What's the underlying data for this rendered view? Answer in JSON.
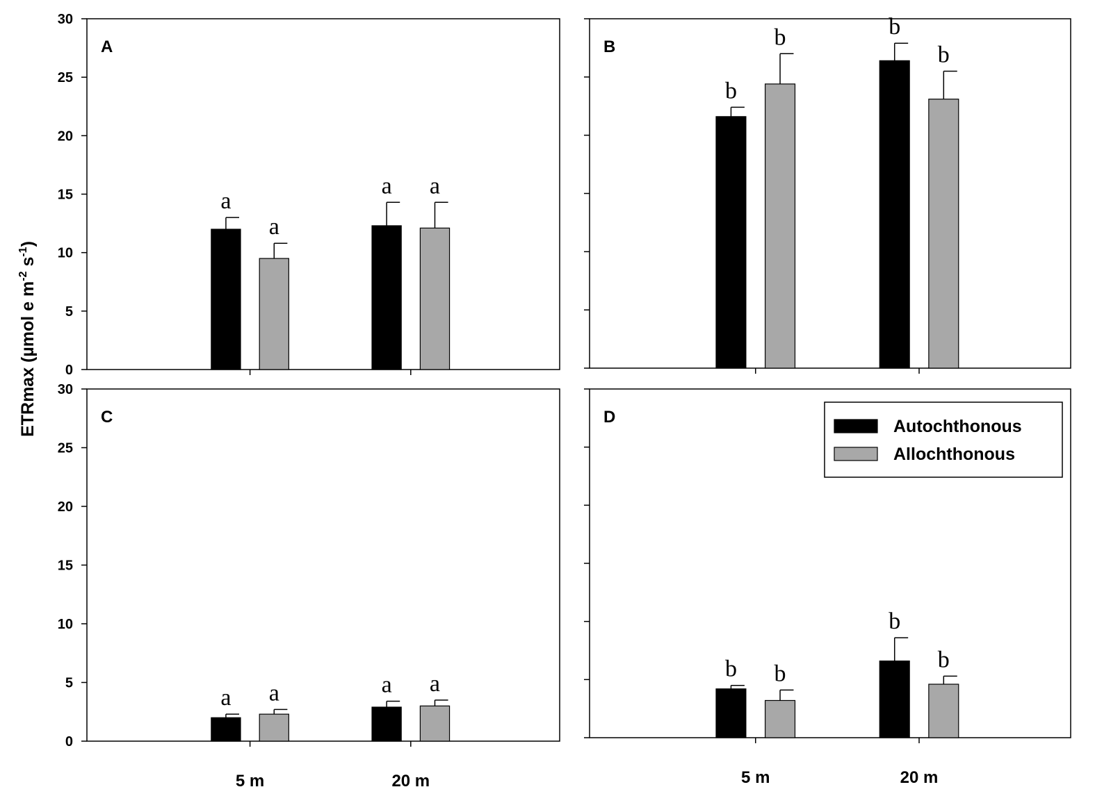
{
  "figure": {
    "y_axis_label": "ETRmax (µmol e m-2 s-1)",
    "y_axis_label_parts": {
      "base": "ETRmax (µmol e m",
      "exp1": "-2",
      "mid": " s",
      "exp2": "-1",
      "end": ")"
    },
    "legend": {
      "placement": "top-right of panel D",
      "entries": [
        {
          "label": "Autochthonous",
          "color": "#000000"
        },
        {
          "label": "Allochthonous",
          "color": "#a8a8a8"
        }
      ]
    },
    "colors": {
      "autochthonous": "#000000",
      "allochthonous": "#a8a8a8",
      "axis": "#000000"
    }
  },
  "chart_data": [
    {
      "type": "bar",
      "panel": "A",
      "categories": [
        "5 m",
        "20 m"
      ],
      "series": [
        {
          "name": "Autochthonous",
          "values": [
            12.0,
            12.3
          ],
          "errors": [
            1.0,
            2.0
          ],
          "sig": [
            "a",
            "a"
          ]
        },
        {
          "name": "Allochthonous",
          "values": [
            9.5,
            12.1
          ],
          "errors": [
            1.3,
            2.2
          ],
          "sig": [
            "a",
            "a"
          ]
        }
      ],
      "ylim": [
        0,
        30
      ],
      "yticks": [
        0,
        5,
        10,
        15,
        20,
        25,
        30
      ],
      "show_tick_labels": true
    },
    {
      "type": "bar",
      "panel": "B",
      "categories": [
        "5 m",
        "20 m"
      ],
      "series": [
        {
          "name": "Autochthonous",
          "values": [
            21.6,
            26.4
          ],
          "errors": [
            0.8,
            1.5
          ],
          "sig": [
            "b",
            "b"
          ]
        },
        {
          "name": "Allochthonous",
          "values": [
            24.4,
            23.1
          ],
          "errors": [
            2.6,
            2.4
          ],
          "sig": [
            "b",
            "b"
          ]
        }
      ],
      "ylim": [
        0,
        30
      ],
      "yticks": [
        0,
        5,
        10,
        15,
        20,
        25,
        30
      ],
      "show_tick_labels": false
    },
    {
      "type": "bar",
      "panel": "C",
      "categories": [
        "5 m",
        "20 m"
      ],
      "series": [
        {
          "name": "Autochthonous",
          "values": [
            2.0,
            2.9
          ],
          "errors": [
            0.3,
            0.5
          ],
          "sig": [
            "a",
            "a"
          ]
        },
        {
          "name": "Allochthonous",
          "values": [
            2.3,
            3.0
          ],
          "errors": [
            0.4,
            0.5
          ],
          "sig": [
            "a",
            "a"
          ]
        }
      ],
      "ylim": [
        0,
        30
      ],
      "yticks": [
        0,
        5,
        10,
        15,
        20,
        25,
        30
      ],
      "show_tick_labels": true
    },
    {
      "type": "bar",
      "panel": "D",
      "categories": [
        "5 m",
        "20 m"
      ],
      "series": [
        {
          "name": "Autochthonous",
          "values": [
            4.2,
            6.6
          ],
          "errors": [
            0.3,
            2.0
          ],
          "sig": [
            "b",
            "b"
          ]
        },
        {
          "name": "Allochthonous",
          "values": [
            3.2,
            4.6
          ],
          "errors": [
            0.9,
            0.7
          ],
          "sig": [
            "b",
            "b"
          ]
        }
      ],
      "ylim": [
        0,
        30
      ],
      "yticks": [
        0,
        5,
        10,
        15,
        20,
        25,
        30
      ],
      "show_tick_labels": false
    }
  ]
}
